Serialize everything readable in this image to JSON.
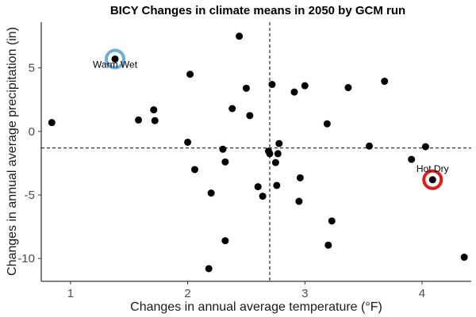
{
  "chart_data": {
    "type": "scatter",
    "title": "BICY Changes in climate means in 2050 by GCM run",
    "xlabel": "Changes in annual average temperature (°F)",
    "ylabel": "Changes in annual average precipitation (in)",
    "xlim": [
      0.75,
      4.42
    ],
    "ylim": [
      -11.8,
      8.6
    ],
    "xticks": [
      1,
      2,
      3,
      4
    ],
    "yticks": [
      -10,
      -5,
      0,
      5
    ],
    "ref_lines": {
      "x": 2.7,
      "y": -1.3
    },
    "grid": false,
    "points": [
      {
        "x": 0.84,
        "y": 0.7
      },
      {
        "x": 1.38,
        "y": 5.7
      },
      {
        "x": 1.58,
        "y": 0.9
      },
      {
        "x": 1.71,
        "y": 1.7
      },
      {
        "x": 1.72,
        "y": 0.85
      },
      {
        "x": 2.0,
        "y": -0.85
      },
      {
        "x": 2.02,
        "y": 4.5
      },
      {
        "x": 2.06,
        "y": -3.0
      },
      {
        "x": 2.18,
        "y": -10.8
      },
      {
        "x": 2.2,
        "y": -4.85
      },
      {
        "x": 2.3,
        "y": -1.4
      },
      {
        "x": 2.32,
        "y": -2.4
      },
      {
        "x": 2.32,
        "y": -8.6
      },
      {
        "x": 2.38,
        "y": 1.8
      },
      {
        "x": 2.44,
        "y": 7.5
      },
      {
        "x": 2.5,
        "y": 3.4
      },
      {
        "x": 2.53,
        "y": 1.25
      },
      {
        "x": 2.6,
        "y": -4.35
      },
      {
        "x": 2.64,
        "y": -5.1
      },
      {
        "x": 2.69,
        "y": -1.55
      },
      {
        "x": 2.7,
        "y": -1.75
      },
      {
        "x": 2.72,
        "y": 3.7
      },
      {
        "x": 2.75,
        "y": -2.45
      },
      {
        "x": 2.76,
        "y": -4.25
      },
      {
        "x": 2.77,
        "y": -1.75
      },
      {
        "x": 2.78,
        "y": -0.95
      },
      {
        "x": 2.91,
        "y": 3.1
      },
      {
        "x": 2.95,
        "y": -5.5
      },
      {
        "x": 2.96,
        "y": -3.65
      },
      {
        "x": 3.0,
        "y": 3.6
      },
      {
        "x": 3.19,
        "y": 0.6
      },
      {
        "x": 3.2,
        "y": -8.95
      },
      {
        "x": 3.23,
        "y": -7.05
      },
      {
        "x": 3.37,
        "y": 3.45
      },
      {
        "x": 3.55,
        "y": -1.15
      },
      {
        "x": 3.68,
        "y": 3.95
      },
      {
        "x": 3.91,
        "y": -2.2
      },
      {
        "x": 4.03,
        "y": -1.2
      },
      {
        "x": 4.09,
        "y": -3.8
      },
      {
        "x": 4.36,
        "y": -9.9
      }
    ],
    "highlights": [
      {
        "label": "Warm Wet",
        "x": 1.38,
        "y": 5.7,
        "color": "#6baed6"
      },
      {
        "label": "Hot Dry",
        "x": 4.09,
        "y": -3.8,
        "color": "#e31a1c"
      }
    ]
  }
}
